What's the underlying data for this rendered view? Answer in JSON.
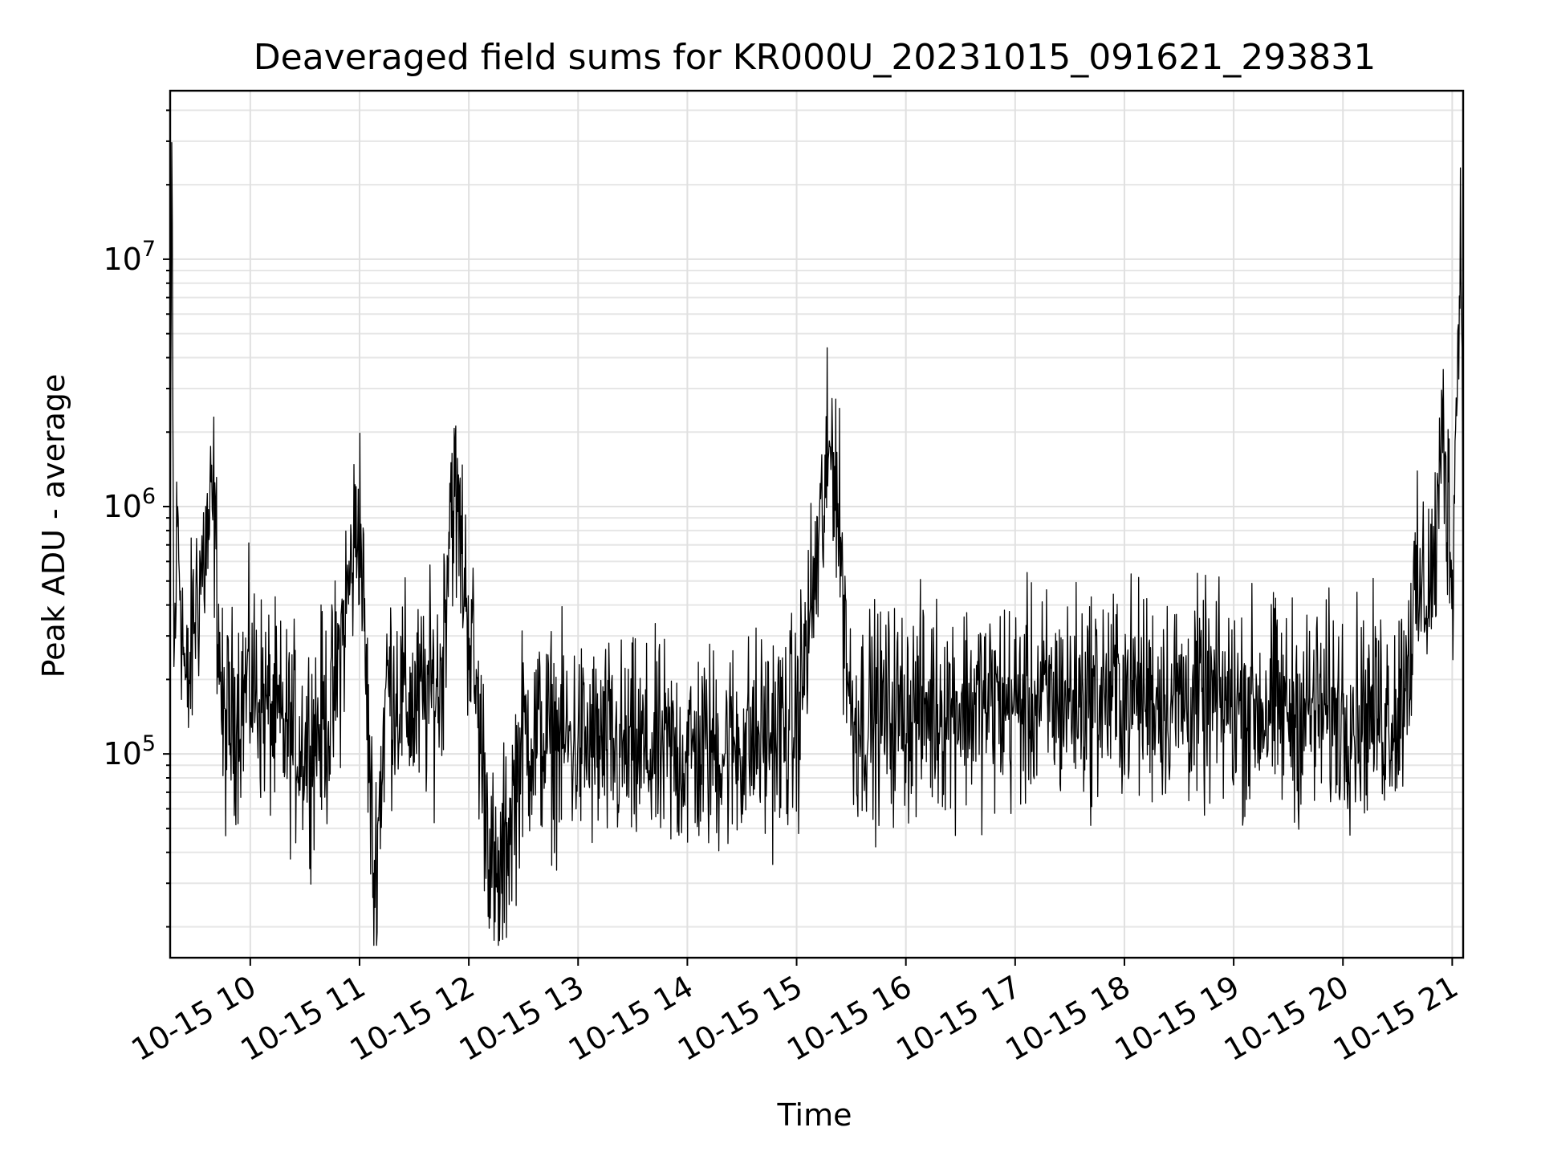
{
  "chart_data": {
    "type": "line",
    "title": "Deaveraged field sums for KR000U_20231015_091621_293831",
    "xlabel": "Time",
    "ylabel": "Peak ADU - average",
    "yscale": "log",
    "grid": true,
    "line_color": "#000000",
    "x_range": [
      "2023-10-15 09:16",
      "2023-10-15 21:06"
    ],
    "ylim": [
      15000,
      48000000
    ],
    "x_ticks": [
      {
        "t": "2023-10-15 10:00",
        "label": "10-15 10"
      },
      {
        "t": "2023-10-15 11:00",
        "label": "10-15 11"
      },
      {
        "t": "2023-10-15 12:00",
        "label": "10-15 12"
      },
      {
        "t": "2023-10-15 13:00",
        "label": "10-15 13"
      },
      {
        "t": "2023-10-15 14:00",
        "label": "10-15 14"
      },
      {
        "t": "2023-10-15 15:00",
        "label": "10-15 15"
      },
      {
        "t": "2023-10-15 16:00",
        "label": "10-15 16"
      },
      {
        "t": "2023-10-15 17:00",
        "label": "10-15 17"
      },
      {
        "t": "2023-10-15 18:00",
        "label": "10-15 18"
      },
      {
        "t": "2023-10-15 19:00",
        "label": "10-15 19"
      },
      {
        "t": "2023-10-15 20:00",
        "label": "10-15 20"
      },
      {
        "t": "2023-10-15 21:00",
        "label": "10-15 21"
      }
    ],
    "y_ticks": [
      {
        "value": 100000,
        "base": "10",
        "exp": "5"
      },
      {
        "value": 1000000,
        "base": "10",
        "exp": "6"
      },
      {
        "value": 10000000,
        "base": "10",
        "exp": "7"
      }
    ],
    "series": [
      {
        "points": [
          [
            "2023-10-15 09:16",
            300000
          ],
          [
            "2023-10-15 09:17",
            34000000
          ],
          [
            "2023-10-15 09:18",
            200000
          ],
          [
            "2023-10-15 09:20",
            900000
          ],
          [
            "2023-10-15 09:25",
            150000
          ],
          [
            "2023-10-15 09:30",
            420000
          ],
          [
            "2023-10-15 09:40",
            1000000
          ],
          [
            "2023-10-15 09:45",
            120000
          ],
          [
            "2023-10-15 10:00",
            200000
          ],
          [
            "2023-10-15 10:15",
            130000
          ],
          [
            "2023-10-15 10:30",
            110000
          ],
          [
            "2023-10-15 10:45",
            150000
          ],
          [
            "2023-10-15 11:00",
            1000000
          ],
          [
            "2023-10-15 11:08",
            28000
          ],
          [
            "2023-10-15 11:15",
            200000
          ],
          [
            "2023-10-15 11:30",
            150000
          ],
          [
            "2023-10-15 11:45",
            200000
          ],
          [
            "2023-10-15 11:50",
            1200000
          ],
          [
            "2023-10-15 11:55",
            800000
          ],
          [
            "2023-10-15 12:05",
            150000
          ],
          [
            "2023-10-15 12:15",
            24000
          ],
          [
            "2023-10-15 12:30",
            120000
          ],
          [
            "2023-10-15 13:00",
            110000
          ],
          [
            "2023-10-15 13:30",
            100000
          ],
          [
            "2023-10-15 14:00",
            100000
          ],
          [
            "2023-10-15 14:30",
            110000
          ],
          [
            "2023-10-15 15:00",
            130000
          ],
          [
            "2023-10-15 15:20",
            2000000
          ],
          [
            "2023-10-15 15:30",
            140000
          ],
          [
            "2023-10-15 16:00",
            150000
          ],
          [
            "2023-10-15 16:30",
            160000
          ],
          [
            "2023-10-15 17:00",
            160000
          ],
          [
            "2023-10-15 17:30",
            170000
          ],
          [
            "2023-10-15 18:00",
            180000
          ],
          [
            "2023-10-15 18:30",
            170000
          ],
          [
            "2023-10-15 19:00",
            160000
          ],
          [
            "2023-10-15 19:30",
            150000
          ],
          [
            "2023-10-15 20:00",
            150000
          ],
          [
            "2023-10-15 20:30",
            150000
          ],
          [
            "2023-10-15 20:40",
            400000
          ],
          [
            "2023-10-15 20:50",
            550000
          ],
          [
            "2023-10-15 20:55",
            2000000
          ],
          [
            "2023-10-15 21:00",
            550000
          ],
          [
            "2023-10-15 21:05",
            15000000
          ],
          [
            "2023-10-15 21:06",
            700000
          ]
        ]
      }
    ]
  }
}
